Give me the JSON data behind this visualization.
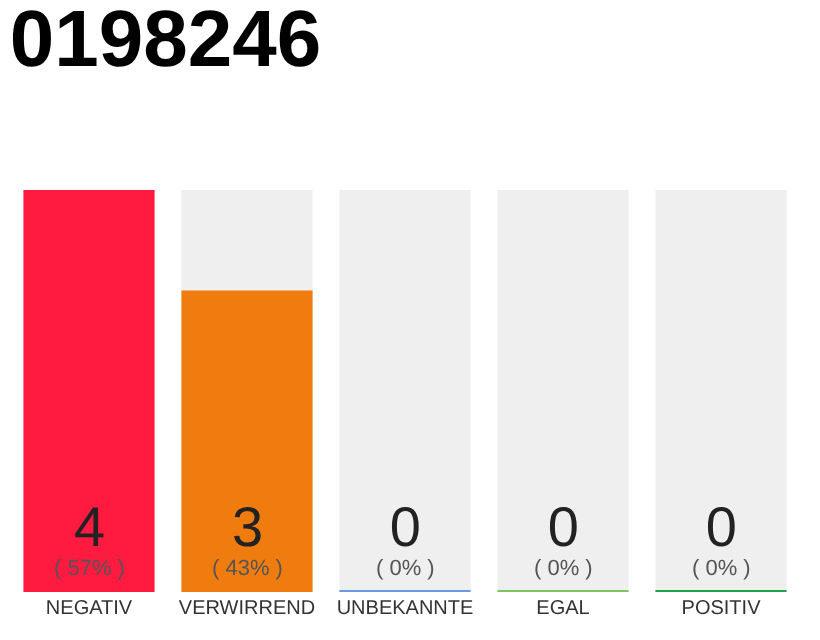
{
  "chart_data": {
    "type": "bar",
    "title": "0198246",
    "categories": [
      "NEGATIV",
      "VERWIRREND",
      "UNBEKANNTE",
      "EGAL",
      "POSITIV"
    ],
    "values": [
      4,
      3,
      0,
      0,
      0
    ],
    "colors": [
      "#ff1a40",
      "#f07c0f",
      "#6a9be0",
      "#7dc35f",
      "#1fa44a"
    ],
    "ylim": [
      0,
      4
    ],
    "tick_labels": "x",
    "grid": false,
    "value_labels": [
      "4\n( 57% )",
      "3\n( 43% )",
      "0\n( 0% )",
      "0\n( 0% )",
      "0\n( 0% )"
    ]
  }
}
